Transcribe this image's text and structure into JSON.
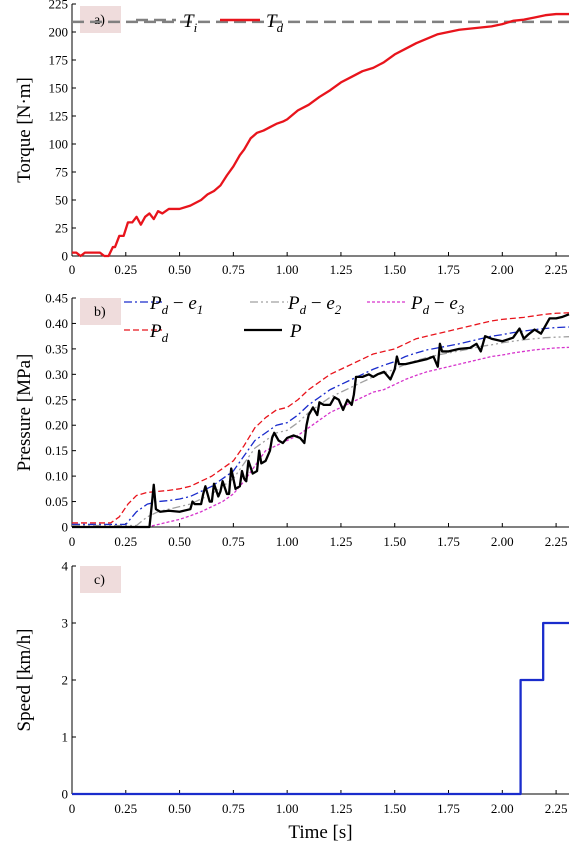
{
  "chart_data": [
    {
      "type": "line",
      "panel_label": "a)",
      "ylabel": "Torque [N·m]",
      "xlim": [
        0,
        2.31
      ],
      "ylim": [
        0,
        225
      ],
      "xticks": [
        0,
        0.25,
        0.5,
        0.75,
        1.0,
        1.25,
        1.5,
        1.75,
        2.0,
        2.25
      ],
      "xtick_labels": [
        "0",
        "0.25",
        "0.50",
        "0.75",
        "1.00",
        "1.25",
        "1.50",
        "1.75",
        "2.00",
        "2.25"
      ],
      "yticks": [
        0,
        25,
        50,
        75,
        100,
        125,
        150,
        175,
        200,
        225
      ],
      "ytick_labels": [
        "0",
        "25",
        "50",
        "75",
        "100",
        "125",
        "150",
        "175",
        "200",
        "225"
      ],
      "legend": [
        {
          "symbol": "T",
          "sub": "i",
          "color": "#808080",
          "dash": "12,6",
          "width": 2.5
        },
        {
          "symbol": "T",
          "sub": "d",
          "color": "#e8141c",
          "dash": "",
          "width": 2.5
        }
      ],
      "series": [
        {
          "name": "T_i",
          "color": "#808080",
          "dash": "12,6",
          "x": [
            0,
            2.31
          ],
          "y": [
            209,
            209
          ]
        },
        {
          "name": "T_d",
          "color": "#e8141c",
          "dash": "",
          "x": [
            0,
            0.02,
            0.04,
            0.06,
            0.08,
            0.1,
            0.13,
            0.15,
            0.17,
            0.19,
            0.2,
            0.22,
            0.24,
            0.26,
            0.28,
            0.3,
            0.32,
            0.34,
            0.36,
            0.38,
            0.4,
            0.42,
            0.45,
            0.48,
            0.5,
            0.55,
            0.6,
            0.63,
            0.66,
            0.69,
            0.72,
            0.75,
            0.78,
            0.8,
            0.83,
            0.86,
            0.89,
            0.92,
            0.95,
            0.98,
            1.0,
            1.05,
            1.1,
            1.15,
            1.2,
            1.25,
            1.3,
            1.35,
            1.4,
            1.45,
            1.5,
            1.55,
            1.6,
            1.65,
            1.7,
            1.75,
            1.8,
            1.85,
            1.9,
            1.95,
            2.0,
            2.05,
            2.1,
            2.15,
            2.2,
            2.25,
            2.31
          ],
          "y": [
            3,
            3,
            0,
            3,
            3,
            3,
            3,
            0,
            0,
            8,
            8,
            18,
            18,
            30,
            30,
            35,
            28,
            35,
            38,
            33,
            40,
            38,
            42,
            42,
            42,
            45,
            50,
            55,
            58,
            63,
            72,
            80,
            90,
            95,
            105,
            110,
            112,
            115,
            118,
            120,
            122,
            130,
            135,
            142,
            148,
            155,
            160,
            165,
            168,
            173,
            180,
            185,
            190,
            194,
            198,
            200,
            202,
            203,
            204,
            205,
            207,
            210,
            211,
            213,
            215,
            216,
            216
          ]
        }
      ]
    },
    {
      "type": "line",
      "panel_label": "b)",
      "ylabel": "Pressure [MPa]",
      "xlim": [
        0,
        2.31
      ],
      "ylim": [
        0,
        0.45
      ],
      "xticks": [
        0,
        0.25,
        0.5,
        0.75,
        1.0,
        1.25,
        1.5,
        1.75,
        2.0,
        2.25
      ],
      "xtick_labels": [
        "0",
        "0.25",
        "0.50",
        "0.75",
        "1.00",
        "1.25",
        "1.50",
        "1.75",
        "2.00",
        "2.25"
      ],
      "yticks": [
        0,
        0.05,
        0.1,
        0.15,
        0.2,
        0.25,
        0.3,
        0.35,
        0.4,
        0.45
      ],
      "ytick_labels": [
        "0",
        "0.05",
        "0.10",
        "0.15",
        "0.20",
        "0.25",
        "0.30",
        "0.35",
        "0.40",
        "0.45"
      ],
      "legend": [
        {
          "symbol": "P",
          "sub": "d",
          "op": " − ",
          "sym2": "e",
          "sub2": "1",
          "color": "#1a2ccc",
          "dash": "8,3,2,3",
          "width": 1.3
        },
        {
          "symbol": "P",
          "sub": "d",
          "op": " − ",
          "sym2": "e",
          "sub2": "2",
          "color": "#a0a0a0",
          "dash": "8,3,2,3,2,3",
          "width": 1.3
        },
        {
          "symbol": "P",
          "sub": "d",
          "op": " − ",
          "sym2": "e",
          "sub2": "3",
          "color": "#d633cc",
          "dash": "3,2",
          "width": 1.3
        },
        {
          "symbol": "P",
          "sub": "d",
          "color": "#e8141c",
          "dash": "6,3",
          "width": 1.3
        },
        {
          "symbol": "P",
          "sub": "",
          "color": "#000000",
          "dash": "",
          "width": 2.2
        }
      ],
      "series": [
        {
          "name": "P_d",
          "color": "#e8141c",
          "dash": "6,3",
          "x": [
            0,
            0.18,
            0.22,
            0.26,
            0.3,
            0.35,
            0.4,
            0.45,
            0.5,
            0.55,
            0.6,
            0.65,
            0.7,
            0.75,
            0.8,
            0.85,
            0.9,
            0.95,
            1.0,
            1.05,
            1.1,
            1.15,
            1.2,
            1.25,
            1.3,
            1.35,
            1.4,
            1.45,
            1.5,
            1.55,
            1.6,
            1.65,
            1.7,
            1.75,
            1.8,
            1.85,
            1.9,
            1.95,
            2.0,
            2.05,
            2.1,
            2.15,
            2.2,
            2.25,
            2.31
          ],
          "y": [
            0.008,
            0.008,
            0.02,
            0.045,
            0.062,
            0.068,
            0.07,
            0.072,
            0.075,
            0.08,
            0.09,
            0.1,
            0.115,
            0.13,
            0.16,
            0.195,
            0.215,
            0.23,
            0.235,
            0.25,
            0.27,
            0.285,
            0.3,
            0.31,
            0.32,
            0.33,
            0.34,
            0.345,
            0.35,
            0.36,
            0.37,
            0.375,
            0.38,
            0.385,
            0.39,
            0.395,
            0.4,
            0.405,
            0.408,
            0.41,
            0.412,
            0.415,
            0.418,
            0.42,
            0.421
          ]
        },
        {
          "name": "P_d − e_1",
          "color": "#1a2ccc",
          "dash": "8,3,2,3",
          "x": [
            0,
            0.25,
            0.3,
            0.35,
            0.4,
            0.45,
            0.5,
            0.55,
            0.6,
            0.65,
            0.7,
            0.75,
            0.8,
            0.85,
            0.9,
            0.95,
            1.0,
            1.05,
            1.1,
            1.15,
            1.2,
            1.25,
            1.3,
            1.35,
            1.4,
            1.45,
            1.5,
            1.55,
            1.6,
            1.65,
            1.7,
            1.75,
            1.8,
            1.85,
            1.9,
            1.95,
            2.0,
            2.05,
            2.1,
            2.15,
            2.2,
            2.25,
            2.31
          ],
          "y": [
            0.005,
            0.005,
            0.03,
            0.045,
            0.05,
            0.052,
            0.055,
            0.06,
            0.07,
            0.08,
            0.095,
            0.11,
            0.14,
            0.17,
            0.185,
            0.2,
            0.205,
            0.22,
            0.24,
            0.255,
            0.27,
            0.28,
            0.29,
            0.3,
            0.31,
            0.318,
            0.325,
            0.335,
            0.342,
            0.348,
            0.352,
            0.356,
            0.36,
            0.365,
            0.37,
            0.375,
            0.378,
            0.382,
            0.385,
            0.388,
            0.39,
            0.392,
            0.393
          ]
        },
        {
          "name": "P_d − e_2",
          "color": "#a0a0a0",
          "dash": "8,3,2,3,2,3",
          "x": [
            0,
            0.3,
            0.35,
            0.4,
            0.45,
            0.5,
            0.55,
            0.6,
            0.65,
            0.7,
            0.75,
            0.8,
            0.85,
            0.9,
            0.95,
            1.0,
            1.05,
            1.1,
            1.15,
            1.2,
            1.25,
            1.3,
            1.35,
            1.4,
            1.45,
            1.5,
            1.55,
            1.6,
            1.65,
            1.7,
            1.75,
            1.8,
            1.85,
            1.9,
            1.95,
            2.0,
            2.05,
            2.1,
            2.15,
            2.2,
            2.25,
            2.31
          ],
          "y": [
            0.003,
            0.003,
            0.02,
            0.03,
            0.035,
            0.04,
            0.045,
            0.055,
            0.065,
            0.08,
            0.095,
            0.125,
            0.155,
            0.17,
            0.185,
            0.19,
            0.205,
            0.225,
            0.24,
            0.255,
            0.265,
            0.275,
            0.285,
            0.295,
            0.303,
            0.31,
            0.32,
            0.327,
            0.333,
            0.338,
            0.342,
            0.346,
            0.35,
            0.355,
            0.358,
            0.362,
            0.365,
            0.368,
            0.37,
            0.372,
            0.373,
            0.374
          ]
        },
        {
          "name": "P_d − e_3",
          "color": "#d633cc",
          "dash": "3,2",
          "x": [
            0,
            0.35,
            0.4,
            0.45,
            0.5,
            0.55,
            0.6,
            0.65,
            0.7,
            0.75,
            0.8,
            0.85,
            0.9,
            0.95,
            1.0,
            1.05,
            1.1,
            1.15,
            1.2,
            1.25,
            1.3,
            1.35,
            1.4,
            1.45,
            1.5,
            1.55,
            1.6,
            1.65,
            1.7,
            1.75,
            1.8,
            1.85,
            1.9,
            1.95,
            2.0,
            2.05,
            2.1,
            2.15,
            2.2,
            2.25,
            2.31
          ],
          "y": [
            0.0,
            0.0,
            0.005,
            0.01,
            0.015,
            0.022,
            0.03,
            0.04,
            0.05,
            0.065,
            0.09,
            0.12,
            0.15,
            0.16,
            0.17,
            0.18,
            0.195,
            0.21,
            0.225,
            0.235,
            0.245,
            0.255,
            0.265,
            0.27,
            0.28,
            0.29,
            0.298,
            0.305,
            0.31,
            0.315,
            0.32,
            0.325,
            0.33,
            0.335,
            0.338,
            0.342,
            0.345,
            0.348,
            0.35,
            0.352,
            0.353
          ]
        },
        {
          "name": "P",
          "color": "#000000",
          "dash": "",
          "x": [
            0,
            0.36,
            0.37,
            0.38,
            0.39,
            0.41,
            0.45,
            0.5,
            0.55,
            0.56,
            0.57,
            0.6,
            0.61,
            0.62,
            0.64,
            0.65,
            0.66,
            0.68,
            0.69,
            0.7,
            0.72,
            0.73,
            0.74,
            0.76,
            0.78,
            0.79,
            0.8,
            0.81,
            0.82,
            0.84,
            0.86,
            0.87,
            0.88,
            0.9,
            0.92,
            0.93,
            0.94,
            0.96,
            0.98,
            1.0,
            1.03,
            1.06,
            1.08,
            1.09,
            1.1,
            1.12,
            1.14,
            1.15,
            1.17,
            1.2,
            1.22,
            1.24,
            1.26,
            1.28,
            1.3,
            1.31,
            1.32,
            1.35,
            1.38,
            1.4,
            1.42,
            1.45,
            1.48,
            1.5,
            1.51,
            1.52,
            1.55,
            1.6,
            1.65,
            1.68,
            1.7,
            1.71,
            1.72,
            1.75,
            1.8,
            1.85,
            1.88,
            1.9,
            1.92,
            1.95,
            2.0,
            2.05,
            2.08,
            2.1,
            2.12,
            2.15,
            2.18,
            2.2,
            2.22,
            2.25,
            2.28,
            2.31
          ],
          "y": [
            0.0,
            0.0,
            0.04,
            0.083,
            0.035,
            0.03,
            0.032,
            0.03,
            0.035,
            0.05,
            0.045,
            0.045,
            0.065,
            0.08,
            0.05,
            0.05,
            0.085,
            0.06,
            0.07,
            0.09,
            0.065,
            0.065,
            0.115,
            0.075,
            0.08,
            0.11,
            0.095,
            0.09,
            0.13,
            0.105,
            0.11,
            0.15,
            0.125,
            0.13,
            0.15,
            0.175,
            0.185,
            0.17,
            0.165,
            0.175,
            0.18,
            0.175,
            0.165,
            0.2,
            0.22,
            0.235,
            0.22,
            0.245,
            0.24,
            0.24,
            0.255,
            0.25,
            0.23,
            0.25,
            0.24,
            0.26,
            0.295,
            0.295,
            0.3,
            0.295,
            0.3,
            0.305,
            0.29,
            0.31,
            0.335,
            0.32,
            0.32,
            0.325,
            0.33,
            0.335,
            0.315,
            0.36,
            0.345,
            0.345,
            0.35,
            0.352,
            0.36,
            0.345,
            0.375,
            0.37,
            0.365,
            0.372,
            0.39,
            0.37,
            0.378,
            0.388,
            0.38,
            0.395,
            0.41,
            0.41,
            0.413,
            0.418
          ]
        }
      ]
    },
    {
      "type": "line",
      "panel_label": "c)",
      "ylabel": "Speed [km/h]",
      "xlabel": "Time [s]",
      "xlim": [
        0,
        2.31
      ],
      "ylim": [
        0,
        4
      ],
      "xticks": [
        0,
        0.25,
        0.5,
        0.75,
        1.0,
        1.25,
        1.5,
        1.75,
        2.0,
        2.25
      ],
      "xtick_labels": [
        "0",
        "0.25",
        "0.50",
        "0.75",
        "1.00",
        "1.25",
        "1.50",
        "1.75",
        "2.00",
        "2.25"
      ],
      "yticks": [
        0,
        1,
        2,
        3,
        4
      ],
      "ytick_labels": [
        "0",
        "1",
        "2",
        "3",
        "4"
      ],
      "legend": [],
      "series": [
        {
          "name": "Speed",
          "color": "#1a2ccc",
          "dash": "",
          "x": [
            0,
            2.085,
            2.085,
            2.19,
            2.19,
            2.31
          ],
          "y": [
            0,
            0,
            2,
            2,
            3,
            3
          ]
        }
      ]
    }
  ]
}
